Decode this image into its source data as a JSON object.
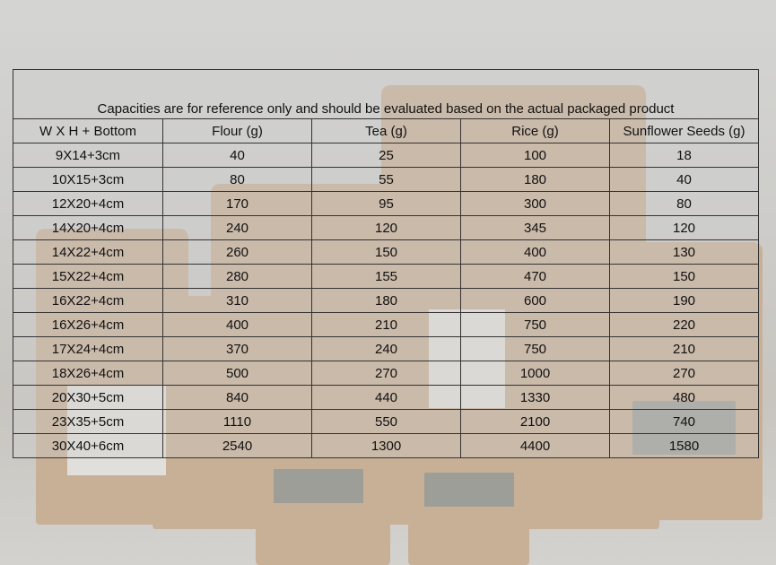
{
  "table": {
    "note": "Capacities are for reference only and should be evaluated based on the actual packaged product",
    "headers": [
      "W X H + Bottom",
      "Flour (g)",
      "Tea (g)",
      "Rice (g)",
      "Sunflower Seeds (g)"
    ],
    "rows": [
      [
        "9X14+3cm",
        "40",
        "25",
        "100",
        "18"
      ],
      [
        "10X15+3cm",
        "80",
        "55",
        "180",
        "40"
      ],
      [
        "12X20+4cm",
        "170",
        "95",
        "300",
        "80"
      ],
      [
        "14X20+4cm",
        "240",
        "120",
        "345",
        "120"
      ],
      [
        "14X22+4cm",
        "260",
        "150",
        "400",
        "130"
      ],
      [
        "15X22+4cm",
        "280",
        "155",
        "470",
        "150"
      ],
      [
        "16X22+4cm",
        "310",
        "180",
        "600",
        "190"
      ],
      [
        "16X26+4cm",
        "400",
        "210",
        "750",
        "220"
      ],
      [
        "17X24+4cm",
        "370",
        "240",
        "750",
        "210"
      ],
      [
        "18X26+4cm",
        "500",
        "270",
        "1000",
        "270"
      ],
      [
        "20X30+5cm",
        "840",
        "440",
        "1330",
        "480"
      ],
      [
        "23X35+5cm",
        "1110",
        "550",
        "2100",
        "740"
      ],
      [
        "30X40+6cm",
        "2540",
        "1300",
        "4400",
        "1580"
      ]
    ]
  },
  "colors": {
    "kraft": "#c9a987",
    "border": "#333333"
  }
}
